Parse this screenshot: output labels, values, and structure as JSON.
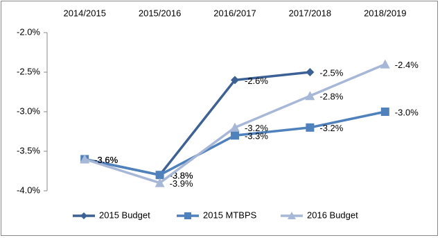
{
  "chart_data": {
    "type": "line",
    "categories": [
      "2014/2015",
      "2015/2016",
      "2016/2017",
      "2017/2018",
      "2018/2019"
    ],
    "series": [
      {
        "name": "2015 Budget",
        "color": "#3c6197",
        "marker": "diamond",
        "values": [
          -3.6,
          -3.8,
          -2.6,
          -2.5,
          null
        ],
        "value_labels": [
          "-3.6%",
          "-3.8%",
          "-2.6%",
          "-2.5%",
          null
        ]
      },
      {
        "name": "2015 MTBPS",
        "color": "#4f81bd",
        "marker": "square",
        "values": [
          -3.6,
          -3.8,
          -3.3,
          -3.2,
          -3.0
        ],
        "value_labels": [
          "-3.6%",
          "-3.8%",
          "-3.3%",
          "-3.2%",
          "-3.0%"
        ]
      },
      {
        "name": "2016 Budget",
        "color": "#a7b7d7",
        "marker": "triangle",
        "values": [
          -3.6,
          -3.9,
          -3.2,
          -2.8,
          -2.4
        ],
        "value_labels": [
          "-3.6%",
          "-3.9%",
          "-3.2%",
          "-2.8%",
          "-2.4%"
        ]
      }
    ],
    "ylim": [
      -4.0,
      -2.0
    ],
    "yticks": [
      {
        "value": -2.0,
        "label": "-2.0%"
      },
      {
        "value": -2.5,
        "label": "-2.5%"
      },
      {
        "value": -3.0,
        "label": "-3.0%"
      },
      {
        "value": -3.5,
        "label": "-3.5%"
      },
      {
        "value": -4.0,
        "label": "-4.0%"
      }
    ],
    "grid": false,
    "legend": "bottom"
  }
}
